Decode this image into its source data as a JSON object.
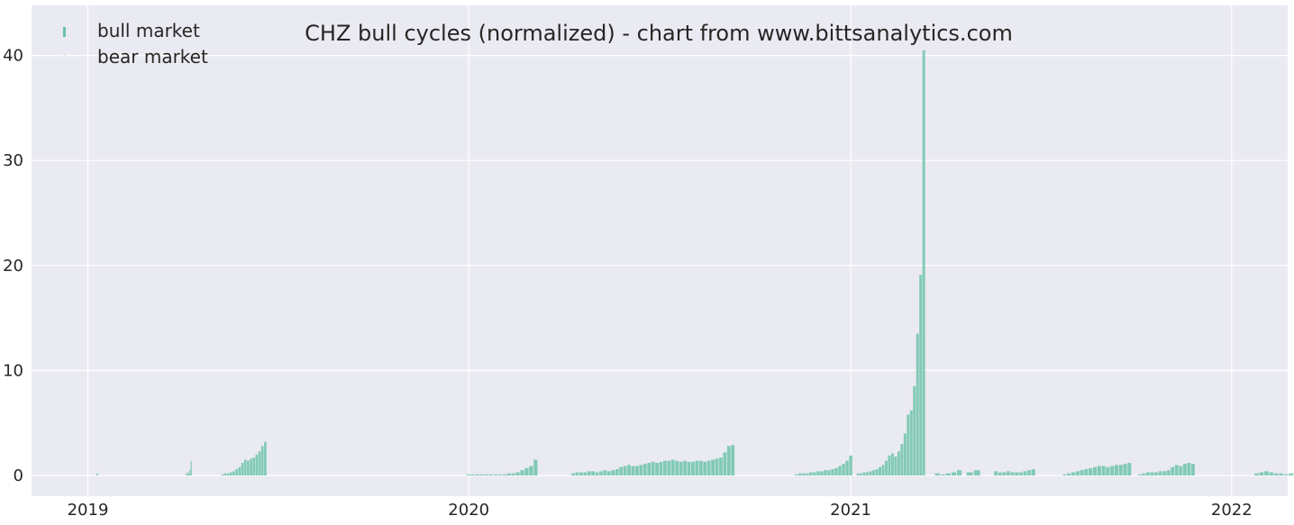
{
  "colors": {
    "background": "#eaeaf2",
    "grid": "#ffffff",
    "bull": "#66c2a5",
    "bear": "#fc8d62",
    "text": "#262626"
  },
  "chart_data": {
    "type": "bar",
    "title": "CHZ bull cycles (normalized)  - chart from www.bittsanalytics.com",
    "xlabel": "",
    "ylabel": "",
    "x_axis": {
      "type": "date",
      "range": [
        "2018-11-29",
        "2022-08-15"
      ],
      "ticks": [
        "2019",
        "2020",
        "2021",
        "2022"
      ]
    },
    "y_axis": {
      "range": [
        -2,
        44
      ],
      "ticks": [
        0,
        10,
        20,
        30,
        40
      ]
    },
    "grid": true,
    "legend": {
      "placement": "top-left",
      "entries": [
        {
          "label": "bull market",
          "color": "#66c2a5"
        },
        {
          "label": "bear market",
          "color": "#fc8d62"
        }
      ]
    },
    "series": [
      {
        "name": "bull market",
        "color": "#66c2a5",
        "segments": [
          {
            "start": "2019-01-10",
            "end": "2019-01-11",
            "values": [
              0.2
            ]
          },
          {
            "start": "2019-04-05",
            "end": "2019-04-10",
            "values": [
              0.1,
              0.3,
              0.2,
              0.5,
              1.4
            ]
          },
          {
            "start": "2019-05-10",
            "end": "2019-06-20",
            "values": [
              0.1,
              0.2,
              0.2,
              0.3,
              0.4,
              0.6,
              0.8,
              1.2,
              1.5,
              1.4,
              1.6,
              1.7,
              2.0,
              2.3,
              2.8,
              3.2
            ]
          },
          {
            "start": "2020-01-01",
            "end": "2020-03-05",
            "values": [
              0.1,
              0.1,
              0.1,
              0.1,
              0.1,
              0.1,
              0.1,
              0.1,
              0.1,
              0.2,
              0.2,
              0.3,
              0.5,
              0.7,
              0.9,
              1.5
            ]
          },
          {
            "start": "2020-04-10",
            "end": "2020-09-10",
            "values": [
              0.2,
              0.3,
              0.3,
              0.3,
              0.4,
              0.4,
              0.3,
              0.4,
              0.5,
              0.4,
              0.5,
              0.6,
              0.8,
              0.9,
              1.0,
              0.9,
              0.9,
              1.0,
              1.1,
              1.2,
              1.3,
              1.2,
              1.3,
              1.4,
              1.4,
              1.5,
              1.4,
              1.3,
              1.4,
              1.3,
              1.3,
              1.4,
              1.4,
              1.3,
              1.4,
              1.5,
              1.6,
              1.7,
              2.2,
              2.8,
              2.9
            ]
          },
          {
            "start": "2020-11-10",
            "end": "2021-01-01",
            "values": [
              0.1,
              0.2,
              0.2,
              0.2,
              0.3,
              0.3,
              0.4,
              0.4,
              0.5,
              0.5,
              0.6,
              0.7,
              0.9,
              1.1,
              1.4,
              1.9
            ]
          },
          {
            "start": "2021-01-08",
            "end": "2021-03-12",
            "values": [
              0.2,
              0.2,
              0.3,
              0.3,
              0.4,
              0.5,
              0.6,
              0.8,
              1.0,
              1.4,
              1.9,
              2.1,
              1.8,
              2.3,
              3.0,
              4.0,
              5.8,
              6.2,
              8.5,
              13.5,
              19.1,
              40.5
            ]
          },
          {
            "start": "2021-03-25",
            "end": "2021-04-15",
            "values": [
              0.2,
              0.1,
              0.2,
              0.3,
              0.5
            ]
          },
          {
            "start": "2021-04-25",
            "end": "2021-05-02",
            "values": [
              0.3,
              0.5
            ]
          },
          {
            "start": "2021-05-20",
            "end": "2021-06-25",
            "values": [
              0.4,
              0.3,
              0.3,
              0.4,
              0.3,
              0.3,
              0.3,
              0.4,
              0.5,
              0.6
            ]
          },
          {
            "start": "2021-07-25",
            "end": "2021-09-25",
            "values": [
              0.1,
              0.2,
              0.3,
              0.4,
              0.5,
              0.6,
              0.7,
              0.8,
              0.9,
              0.9,
              0.8,
              0.9,
              1.0,
              1.0,
              1.1,
              1.2
            ]
          },
          {
            "start": "2021-10-05",
            "end": "2021-11-25",
            "values": [
              0.1,
              0.2,
              0.3,
              0.3,
              0.3,
              0.4,
              0.4,
              0.5,
              0.8,
              1.0,
              0.9,
              1.1,
              1.2,
              1.1
            ]
          },
          {
            "start": "2022-01-25",
            "end": "2022-04-05",
            "values": [
              0.2,
              0.3,
              0.4,
              0.3,
              0.2,
              0.2,
              0.1,
              0.2,
              0.3,
              0.2,
              0.3,
              0.3,
              0.4,
              0.5,
              0.7,
              0.8
            ]
          }
        ]
      },
      {
        "name": "bear market",
        "color": "#fc8d62",
        "segments": []
      }
    ]
  }
}
